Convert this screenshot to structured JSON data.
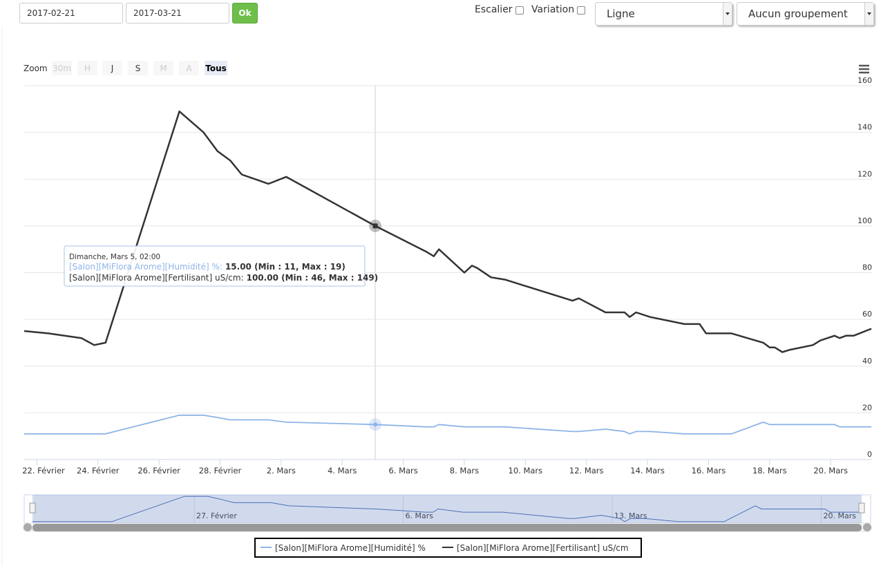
{
  "form": {
    "start_date": "2017-02-21",
    "end_date": "2017-03-21",
    "submit": "Ok",
    "stairs": {
      "label": "Escalier",
      "checked": false
    },
    "variation": {
      "label": "Variation",
      "checked": false
    },
    "chart_type": "Ligne",
    "grouping": "Aucun groupement"
  },
  "chart_data": {
    "type": "line",
    "zoom": {
      "label": "Zoom",
      "buttons": [
        {
          "text": "30m",
          "state": "disabled"
        },
        {
          "text": "H",
          "state": "disabled"
        },
        {
          "text": "J",
          "state": "enabled"
        },
        {
          "text": "S",
          "state": "enabled"
        },
        {
          "text": "M",
          "state": "disabled"
        },
        {
          "text": "A",
          "state": "disabled"
        },
        {
          "text": "Tous",
          "state": "selected"
        }
      ]
    },
    "x": [
      "2017-02-21T14:00",
      "2017-02-22T09:00",
      "2017-02-23T11:00",
      "2017-02-23T21:00",
      "2017-02-24T06:00",
      "2017-02-26T16:00",
      "2017-02-27T11:00",
      "2017-02-27T22:00",
      "2017-02-28T08:00",
      "2017-02-28T17:00",
      "2017-03-01T14:00",
      "2017-03-02T04:00",
      "2017-03-05T02:00",
      "2017-03-06T18:00",
      "2017-03-07T00:00",
      "2017-03-07T04:00",
      "2017-03-08T00:00",
      "2017-03-08T06:00",
      "2017-03-08T10:00",
      "2017-03-08T21:00",
      "2017-03-09T08:00",
      "2017-03-11T13:00",
      "2017-03-11T18:00",
      "2017-03-12T15:00",
      "2017-03-13T06:00",
      "2017-03-13T10:00",
      "2017-03-13T15:00",
      "2017-03-14T02:00",
      "2017-03-15T05:00",
      "2017-03-15T17:00",
      "2017-03-15T22:00",
      "2017-03-16T18:00",
      "2017-03-17T19:00",
      "2017-03-18T00:00",
      "2017-03-18T04:00",
      "2017-03-18T10:00",
      "2017-03-18T16:00",
      "2017-03-19T10:00",
      "2017-03-19T16:00",
      "2017-03-20T03:00",
      "2017-03-20T07:00",
      "2017-03-20T12:00",
      "2017-03-20T18:00",
      "2017-03-21T08:00"
    ],
    "series": [
      {
        "name": "[Salon][MiFlora Arome][Humidité] %",
        "color": "#8db4e8",
        "values": [
          11,
          11,
          11,
          11,
          11,
          19,
          19,
          18,
          17,
          17,
          17,
          16,
          15,
          14,
          14,
          15,
          14,
          14,
          14,
          14,
          14,
          12,
          12,
          13,
          12,
          11,
          12,
          12,
          11,
          11,
          11,
          11,
          16,
          15,
          15,
          15,
          15,
          15,
          15,
          15,
          14,
          14,
          14,
          14
        ]
      },
      {
        "name": "[Salon][MiFlora Arome][Fertilisant] uS/cm",
        "color": "#333333",
        "values": [
          55,
          54,
          52,
          49,
          50,
          149,
          140,
          132,
          128,
          122,
          118,
          121,
          100,
          89,
          87,
          90,
          80,
          83,
          82,
          78,
          77,
          68,
          69,
          63,
          63,
          61,
          63,
          61,
          58,
          58,
          54,
          54,
          50,
          48,
          48,
          46,
          47,
          49,
          51,
          53,
          52,
          53,
          53,
          56
        ]
      }
    ],
    "xlim": [
      "2017-02-21T14:00",
      "2017-03-21T08:30"
    ],
    "xticks": [
      {
        "value": "2017-02-22T00:00",
        "label": "22. Février"
      },
      {
        "value": "2017-02-24T00:00",
        "label": "24. Février"
      },
      {
        "value": "2017-02-26T00:00",
        "label": "26. Février"
      },
      {
        "value": "2017-02-28T00:00",
        "label": "28. Février"
      },
      {
        "value": "2017-03-02T00:00",
        "label": "2. Mars"
      },
      {
        "value": "2017-03-04T00:00",
        "label": "4. Mars"
      },
      {
        "value": "2017-03-06T00:00",
        "label": "6. Mars"
      },
      {
        "value": "2017-03-08T00:00",
        "label": "8. Mars"
      },
      {
        "value": "2017-03-10T00:00",
        "label": "10. Mars"
      },
      {
        "value": "2017-03-12T00:00",
        "label": "12. Mars"
      },
      {
        "value": "2017-03-14T00:00",
        "label": "14. Mars"
      },
      {
        "value": "2017-03-16T00:00",
        "label": "16. Mars"
      },
      {
        "value": "2017-03-18T00:00",
        "label": "18. Mars"
      },
      {
        "value": "2017-03-20T00:00",
        "label": "20. Mars"
      }
    ],
    "ylim": [
      0,
      160
    ],
    "yticks": [
      0,
      20,
      40,
      60,
      80,
      100,
      120,
      140,
      160
    ],
    "grid": true,
    "legend": "bottom",
    "tooltip": {
      "title": "Dimanche, Mars 5, 02:00",
      "rows": [
        {
          "label": "[Salon][MiFlora Arome][Humidité] %:",
          "value": "15.00 (Min : 11, Max : 19)"
        },
        {
          "label": "[Salon][MiFlora Arome][Fertilisant] uS/cm:",
          "value": "100.00 (Min : 46, Max : 149)"
        }
      ]
    },
    "navigator": {
      "ylim": [
        10.5,
        19.5
      ],
      "color": "#4a6fb5",
      "xticks": [
        {
          "value": "2017-02-27T00:00",
          "label": "27. Février"
        },
        {
          "value": "2017-03-06T00:00",
          "label": "6. Mars"
        },
        {
          "value": "2017-03-13T00:00",
          "label": "13. Mars"
        },
        {
          "value": "2017-03-20T00:00",
          "label": "20. Mars"
        }
      ]
    }
  }
}
